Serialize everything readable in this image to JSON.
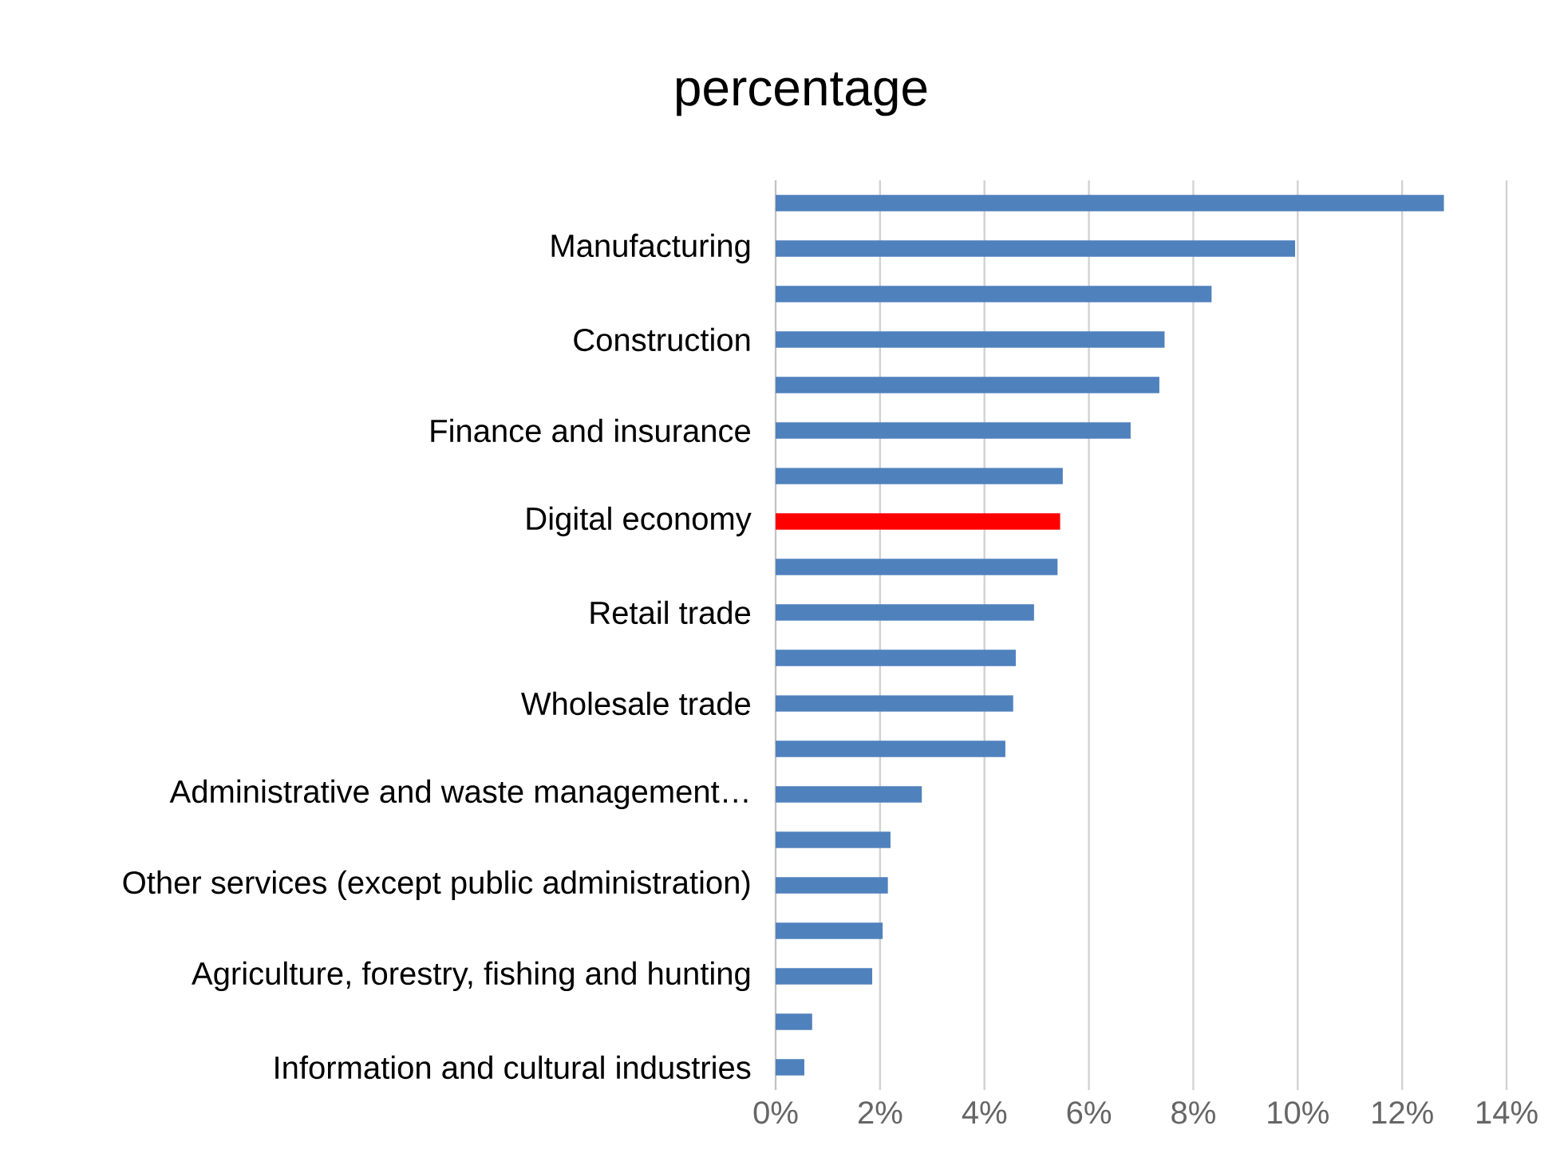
{
  "chart_data": {
    "type": "bar",
    "orientation": "horizontal",
    "title": "percentage",
    "categories": [
      null,
      "Manufacturing",
      null,
      "Construction",
      null,
      "Finance and insurance",
      null,
      "Digital economy",
      null,
      "Retail trade",
      null,
      "Wholesale trade",
      null,
      "Administrative and waste management…",
      null,
      "Other services (except public administration)",
      null,
      "Agriculture, forestry, fishing and hunting",
      null,
      "Information and cultural industries"
    ],
    "values": [
      12.8,
      9.95,
      8.35,
      7.45,
      7.35,
      6.8,
      5.5,
      5.45,
      5.4,
      4.95,
      4.6,
      4.55,
      4.4,
      2.8,
      2.2,
      2.15,
      2.05,
      1.85,
      0.7,
      0.55
    ],
    "colors": [
      "#4f81bd",
      "#4f81bd",
      "#4f81bd",
      "#4f81bd",
      "#4f81bd",
      "#4f81bd",
      "#4f81bd",
      "#ff0000",
      "#4f81bd",
      "#4f81bd",
      "#4f81bd",
      "#4f81bd",
      "#4f81bd",
      "#4f81bd",
      "#4f81bd",
      "#4f81bd",
      "#4f81bd",
      "#4f81bd",
      "#4f81bd",
      "#4f81bd"
    ],
    "xlim": [
      0,
      14
    ],
    "xticks": [
      {
        "value": 0,
        "label": "0%"
      },
      {
        "value": 2,
        "label": "2%"
      },
      {
        "value": 4,
        "label": "4%"
      },
      {
        "value": 6,
        "label": "6%"
      },
      {
        "value": 8,
        "label": "8%"
      },
      {
        "value": 10,
        "label": "10%"
      },
      {
        "value": 12,
        "label": "12%"
      },
      {
        "value": 14,
        "label": "14%"
      }
    ],
    "grid": "x"
  }
}
